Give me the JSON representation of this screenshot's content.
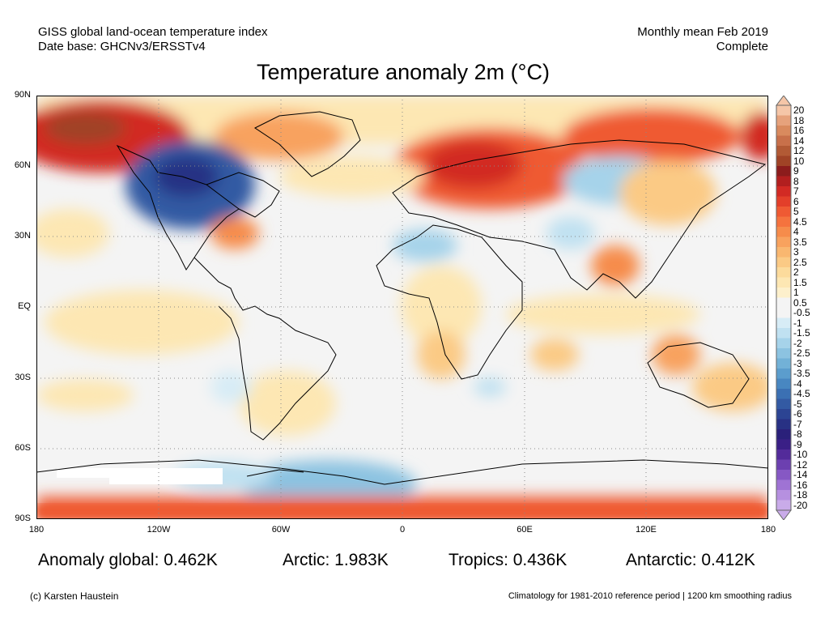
{
  "header": {
    "left_line1": "GISS global land-ocean temperature index",
    "left_line2": "Date base: GHCNv3/ERSSTv4",
    "right_line1": "Monthly mean Feb 2019",
    "right_line2": "Complete"
  },
  "title": "Temperature anomaly 2m (°C)",
  "axes": {
    "lat_labels": [
      "90N",
      "60N",
      "30N",
      "EQ",
      "30S",
      "60S",
      "90S"
    ],
    "lon_labels": [
      "180",
      "120W",
      "60W",
      "0",
      "60E",
      "120E",
      "180"
    ]
  },
  "colorbar": {
    "labels": [
      "20",
      "18",
      "16",
      "14",
      "12",
      "10",
      "9",
      "8",
      "7",
      "6",
      "5",
      "4.5",
      "4",
      "3.5",
      "3",
      "2.5",
      "2",
      "1.5",
      "1",
      "0.5",
      "-0.5",
      "-1",
      "-1.5",
      "-2",
      "-2.5",
      "-3",
      "-3.5",
      "-4",
      "-4.5",
      "-5",
      "-6",
      "-7",
      "-8",
      "-9",
      "-10",
      "-12",
      "-14",
      "-16",
      "-18",
      "-20"
    ],
    "colors": [
      "#f5c6a8",
      "#e6a27c",
      "#d98a5e",
      "#c8704a",
      "#b25a35",
      "#a04326",
      "#8c1c1c",
      "#b21f1f",
      "#d22a24",
      "#e33f2a",
      "#ef5a33",
      "#f5733e",
      "#f68c4b",
      "#f8a25e",
      "#f9b770",
      "#fbca85",
      "#fcdb9c",
      "#fde7b3",
      "#fdf0cc",
      "#f4f4f4",
      "#f4f4f4",
      "#d7ecf6",
      "#c0e1f1",
      "#a6d3ea",
      "#8cc3e1",
      "#72b1d7",
      "#5b9dcd",
      "#4887c1",
      "#3b70b3",
      "#335aa3",
      "#2c4493",
      "#283184",
      "#2a207a",
      "#3a1f86",
      "#532b9a",
      "#6c40b0",
      "#8658c4",
      "#9f73d4",
      "#b690e0",
      "#c9abe9"
    ]
  },
  "stats": {
    "global": "Anomaly global: 0.462K",
    "arctic": "Arctic: 1.983K",
    "tropics": "Tropics: 0.436K",
    "antarctic": "Antarctic: 0.412K"
  },
  "footer": {
    "left": "(c) Karsten Haustein",
    "right": "Climatology for 1981-2010 reference period | 1200 km smoothing radius"
  }
}
